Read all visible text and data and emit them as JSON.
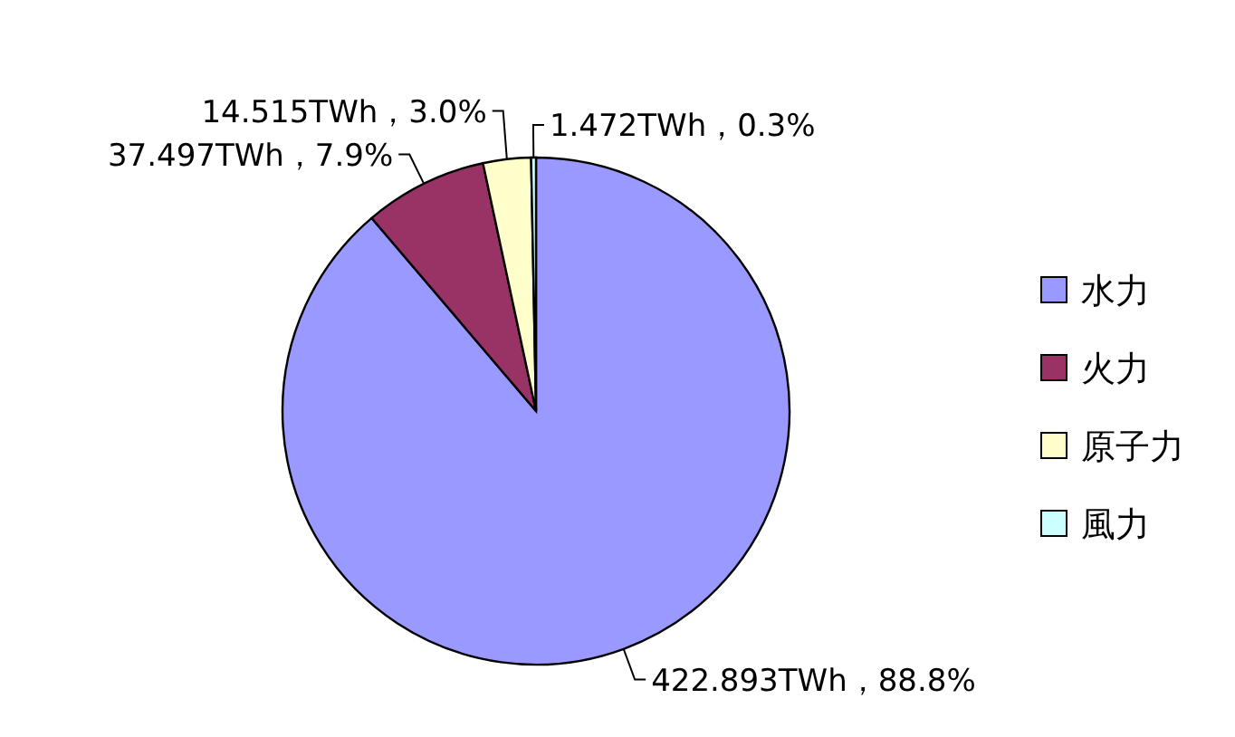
{
  "chart_data": {
    "type": "pie",
    "categories": [
      "水力",
      "火力",
      "原子力",
      "風力"
    ],
    "values": [
      422.893,
      37.497,
      14.515,
      1.472
    ],
    "colors": [
      "#9999ff",
      "#993366",
      "#ffffcc",
      "#ccffff"
    ],
    "value_labels": [
      "422.893TWh，88.8%",
      "37.497TWh，7.9%",
      "14.515TWh，3.0%",
      "1.472TWh，0.3%"
    ],
    "legend": "right"
  }
}
